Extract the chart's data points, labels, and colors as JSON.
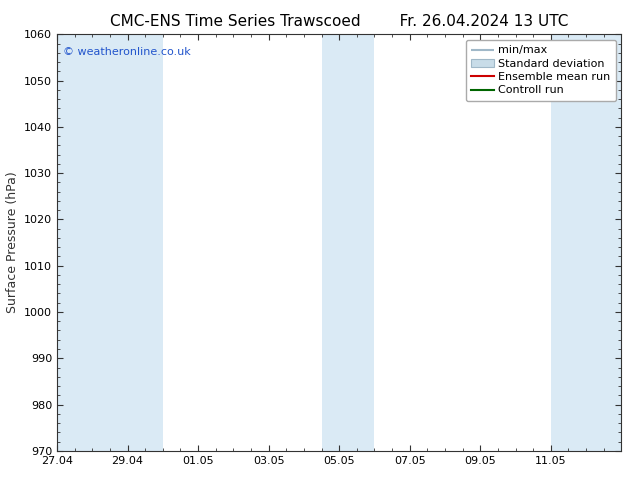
{
  "title_left": "CMC-ENS Time Series Trawscoed",
  "title_right": "Fr. 26.04.2024 13 UTC",
  "ylabel": "Surface Pressure (hPa)",
  "ylim": [
    970,
    1060
  ],
  "yticks": [
    970,
    980,
    990,
    1000,
    1010,
    1020,
    1030,
    1040,
    1050,
    1060
  ],
  "x_tick_labels": [
    "27.04",
    "29.04",
    "01.05",
    "03.05",
    "05.05",
    "07.05",
    "09.05",
    "11.05"
  ],
  "x_tick_positions": [
    0,
    2,
    4,
    6,
    8,
    10,
    12,
    14
  ],
  "x_min": 0,
  "x_max": 16,
  "band_color": "#daeaf5",
  "bg_color": "#ffffff",
  "copyright_text": "© weatheronline.co.uk",
  "legend_items": [
    {
      "label": "min/max",
      "color": "#a8bec8",
      "type": "errorbar"
    },
    {
      "label": "Standard deviation",
      "color": "#c8dce8",
      "type": "fill"
    },
    {
      "label": "Ensemble mean run",
      "color": "#cc0000",
      "type": "line"
    },
    {
      "label": "Controll run",
      "color": "#006600",
      "type": "line"
    }
  ],
  "band_starts": [
    0,
    1.5,
    7.5,
    14
  ],
  "band_ends": [
    1.5,
    3,
    9,
    16
  ],
  "title_fontsize": 11,
  "tick_fontsize": 8,
  "ylabel_fontsize": 9,
  "legend_fontsize": 8
}
